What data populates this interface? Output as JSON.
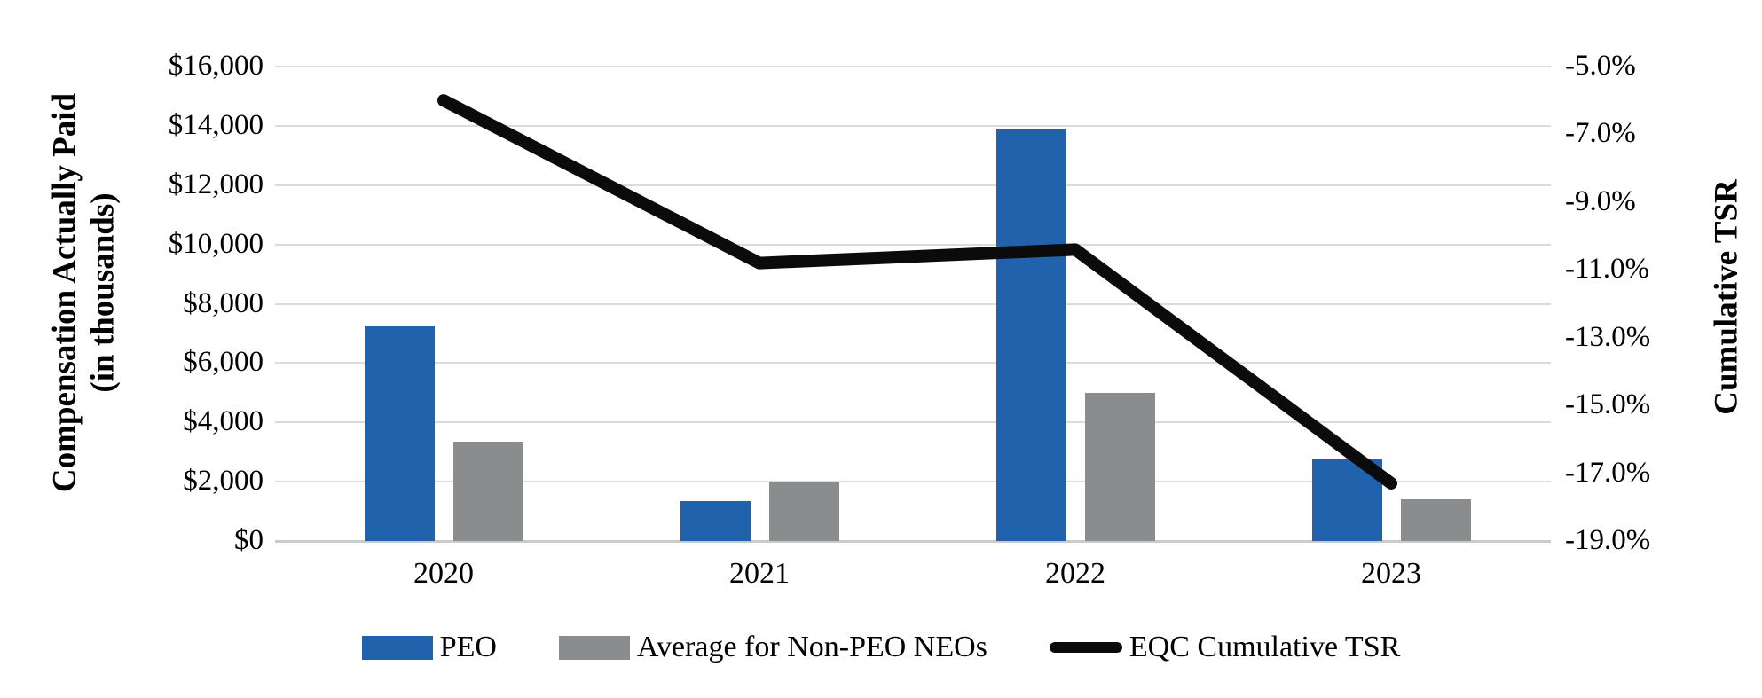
{
  "chart_data": {
    "type": "bar",
    "subtype": "combo-bar-line",
    "title": "",
    "categories": [
      "2020",
      "2021",
      "2022",
      "2023"
    ],
    "series": [
      {
        "name": "PEO",
        "kind": "bar",
        "axis": "left",
        "color": "#2063ac",
        "values": [
          7250,
          1350,
          13900,
          2750
        ]
      },
      {
        "name": "Average for Non-PEO NEOs",
        "kind": "bar",
        "axis": "left",
        "color": "#8a8c8e",
        "values": [
          3350,
          2000,
          5000,
          1400
        ]
      },
      {
        "name": "EQC Cumulative TSR",
        "kind": "line",
        "axis": "right",
        "color": "#0b0b0b",
        "values": [
          -6.0,
          -10.8,
          -10.4,
          -17.3
        ]
      }
    ],
    "left_axis": {
      "title_line1": "Compensation Actually Paid",
      "title_line2": "(in thousands)",
      "min": 0,
      "max": 16000,
      "step": 2000,
      "ticks": [
        "$16,000",
        "$14,000",
        "$12,000",
        "$10,000",
        "$8,000",
        "$6,000",
        "$4,000",
        "$2,000",
        "$0"
      ]
    },
    "right_axis": {
      "title": "Cumulative TSR",
      "min": -19,
      "max": -5,
      "step": 2,
      "ticks": [
        "-5.0%",
        "-7.0%",
        "-9.0%",
        "-11.0%",
        "-13.0%",
        "-15.0%",
        "-17.0%",
        "-19.0%"
      ]
    },
    "grid": true,
    "legend_position": "bottom",
    "colors": {
      "gridline": "#dbdbdb",
      "axis_baseline": "#c9cccd",
      "text": "#000000"
    }
  },
  "legend": {
    "items": [
      {
        "label": "PEO",
        "swatch": "bar"
      },
      {
        "label": "Average for Non-PEO NEOs",
        "swatch": "bar"
      },
      {
        "label": "EQC Cumulative TSR",
        "swatch": "line"
      }
    ]
  }
}
